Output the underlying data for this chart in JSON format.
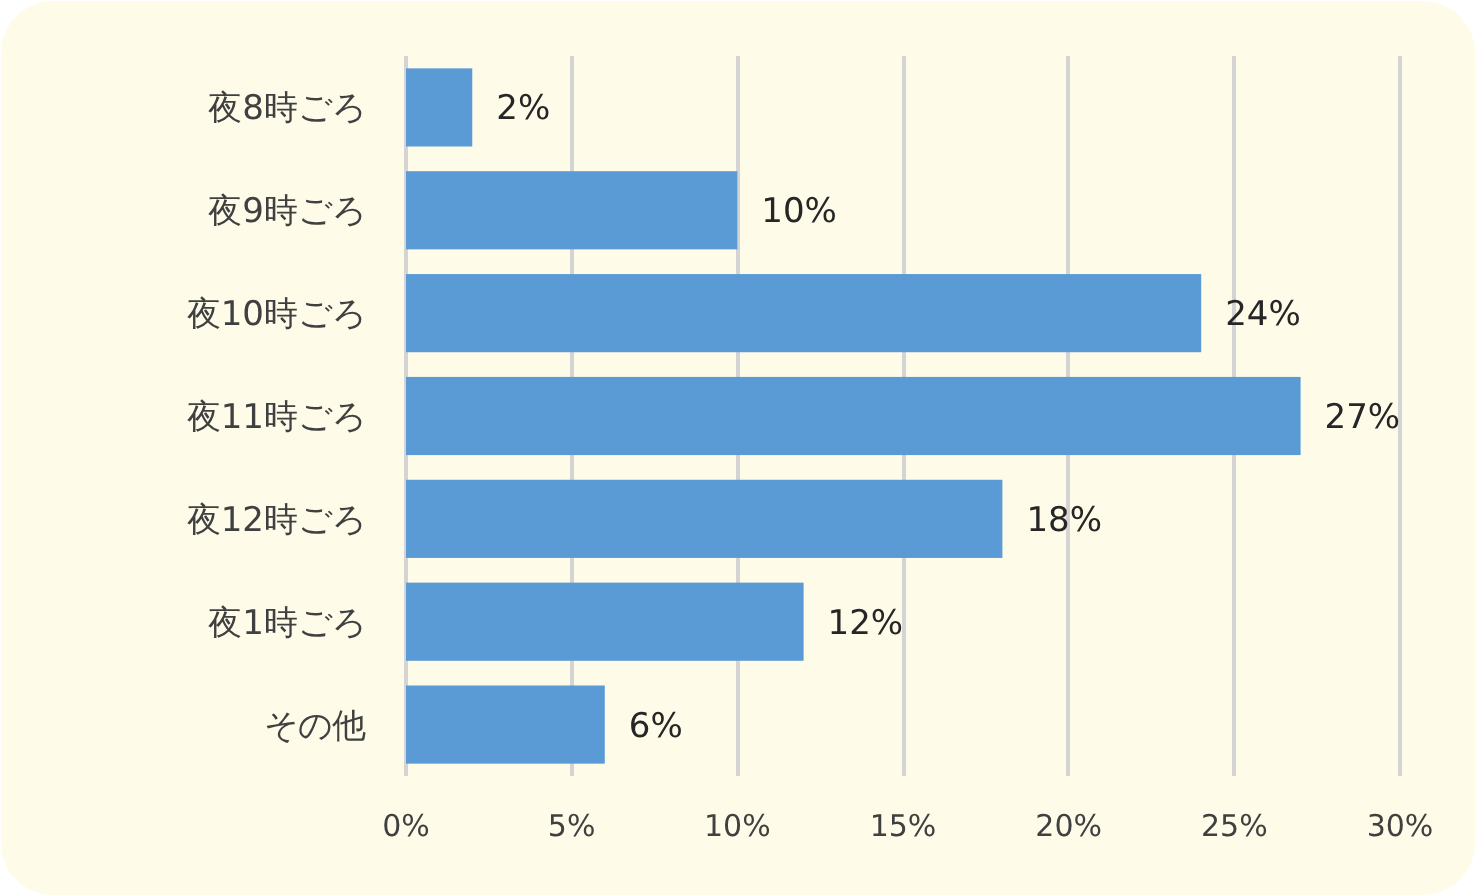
{
  "chart_data": {
    "type": "bar",
    "orientation": "horizontal",
    "categories": [
      "夜8時ごろ",
      "夜9時ごろ",
      "夜10時ごろ",
      "夜11時ごろ",
      "夜12時ごろ",
      "夜1時ごろ",
      "その他"
    ],
    "values": [
      2,
      10,
      24,
      27,
      18,
      12,
      6
    ],
    "value_labels": [
      "2%",
      "10%",
      "24%",
      "27%",
      "18%",
      "12%",
      "6%"
    ],
    "color": "#5b9bd5",
    "xlim": [
      0,
      30
    ],
    "xticks": [
      {
        "value": 0,
        "label": "0%"
      },
      {
        "value": 5,
        "label": "5%"
      },
      {
        "value": 10,
        "label": "10%"
      },
      {
        "value": 15,
        "label": "15%"
      },
      {
        "value": 20,
        "label": "20%"
      },
      {
        "value": 25,
        "label": "25%"
      },
      {
        "value": 30,
        "label": "30%"
      }
    ],
    "grid": "x"
  }
}
